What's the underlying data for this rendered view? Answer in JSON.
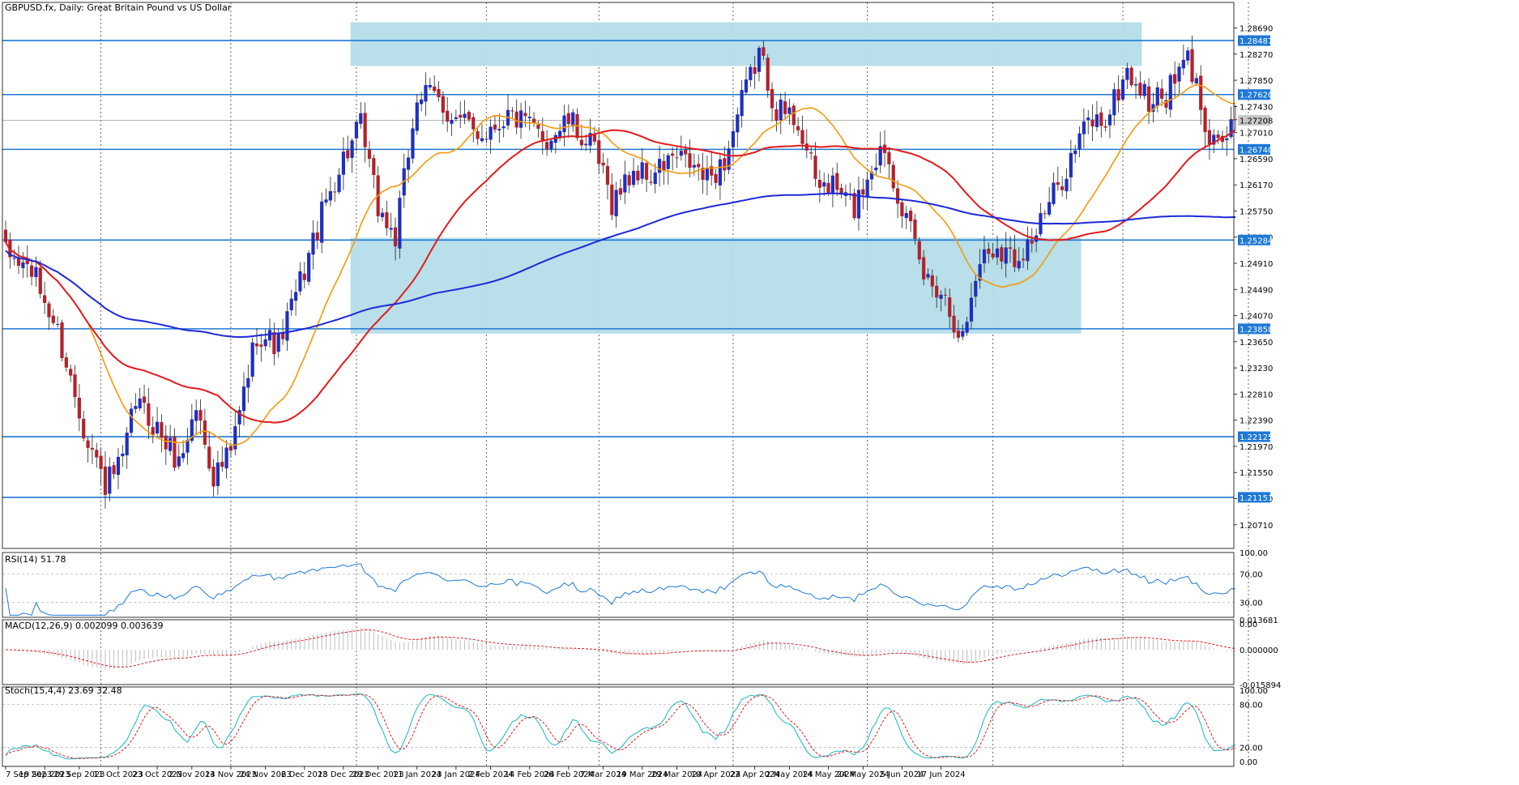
{
  "header": {
    "main_title": "GBPUSD.fx, Daily:  Great Britain Pound vs US Dollar",
    "rsi_label": "RSI(14) 51.78",
    "macd_label": "MACD(12,26,9) 0.002099 0.003639",
    "stoch_label": "Stoch(15,4,4) 23.69 32.48"
  },
  "colors": {
    "background": "#ffffff",
    "bull_candle": "#1f2fbf",
    "bear_candle": "#b2222b",
    "ma_fast": "#f59a0a",
    "ma_mid": "#e31a1c",
    "ma_slow": "#1d28d8",
    "level_line": "#1e78d6",
    "zone_fill": "#b4dde9",
    "label_fill": "#1e78d6",
    "rsi_line": "#1e78d6",
    "macd_hist": "#bdbdbd",
    "macd_signal": "#e31a1c",
    "stoch_main": "#17b6c6",
    "stoch_signal": "#e31a1c",
    "grid_vertical": "#000000"
  },
  "chart_data": {
    "type": "candlestick",
    "instrument": "GBPUSD.fx",
    "timeframe": "Daily",
    "price_range": [
      1.2033,
      1.291
    ],
    "price_ticks": [
      "1.28690",
      "1.28270",
      "1.27850",
      "1.27430",
      "1.27010",
      "1.26590",
      "1.26170",
      "1.25750",
      "1.25330",
      "1.24910",
      "1.24490",
      "1.24070",
      "1.23650",
      "1.23230",
      "1.22810",
      "1.22390",
      "1.21970",
      "1.21550",
      "1.21130",
      "1.20710"
    ],
    "current_price": "1.27208",
    "current_price_value": 1.27208,
    "levels": [
      {
        "label": "1.28487",
        "value": 1.28487
      },
      {
        "label": "1.27620",
        "value": 1.2762
      },
      {
        "label": "1.26740",
        "value": 1.2674
      },
      {
        "label": "1.25284",
        "value": 1.25284
      },
      {
        "label": "1.23858",
        "value": 1.23858
      },
      {
        "label": "1.22125",
        "value": 1.22125
      },
      {
        "label": "1.21151",
        "value": 1.21151
      }
    ],
    "zones": [
      {
        "from_bar": 80,
        "to_bar": 262,
        "price_low": 1.2808,
        "price_high": 1.2878
      },
      {
        "from_bar": 80,
        "to_bar": 248,
        "price_low": 1.2378,
        "price_high": 1.2532
      }
    ],
    "date_labels": [
      "7 Sep 2023",
      "19 Sep 2023",
      "29 Sep 2023",
      "11 Oct 2023",
      "23 Oct 2023",
      "2 Nov 2023",
      "14 Nov 2023",
      "24 Nov 2023",
      "6 Dec 2023",
      "18 Dec 2023",
      "29 Dec 2023",
      "11 Jan 2024",
      "23 Jan 2024",
      "2 Feb 2024",
      "14 Feb 2024",
      "26 Feb 2024",
      "7 Mar 2024",
      "19 Mar 2024",
      "29 Mar 2024",
      "10 Apr 2024",
      "22 Apr 2024",
      "2 May 2024",
      "14 May 2024",
      "24 May 2024",
      "5 Jun 2024",
      "17 Jun 2024"
    ],
    "date_label_bars": [
      0,
      9,
      17,
      26,
      35,
      43,
      52,
      60,
      69,
      78,
      86,
      95,
      104,
      112,
      121,
      130,
      138,
      147,
      155,
      164,
      173,
      181,
      190,
      198,
      207,
      216
    ],
    "period_separator_bars": [
      22,
      52,
      81,
      111,
      137,
      168,
      199,
      228,
      258,
      287
    ],
    "rsi": {
      "range": [
        0,
        100
      ],
      "ticks": [
        "100.00",
        "70.00",
        "30.00",
        "0.00"
      ],
      "levels": [
        70,
        30
      ]
    },
    "macd": {
      "range": [
        -0.015894,
        0.013681
      ],
      "ticks": [
        "0.013681",
        "0.000000",
        "-0.015894"
      ]
    },
    "stoch": {
      "range": [
        0,
        100
      ],
      "ticks": [
        "100.00",
        "80.00",
        "20.00",
        "0.00"
      ],
      "levels": [
        80,
        20
      ]
    }
  }
}
